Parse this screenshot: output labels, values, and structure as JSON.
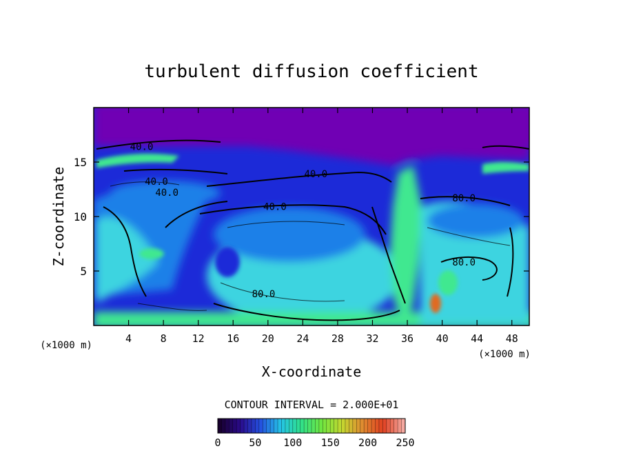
{
  "chart_data": {
    "type": "heatmap",
    "title": "turbulent diffusion coefficient",
    "xlabel": "X-coordinate",
    "ylabel": "Z-coordinate",
    "x_unit": "(×1000 m)",
    "y_unit": "(×1000 m)",
    "xlim": [
      0,
      50
    ],
    "ylim": [
      0,
      20
    ],
    "x_ticks": [
      4,
      8,
      12,
      16,
      20,
      24,
      28,
      32,
      36,
      40,
      44,
      48
    ],
    "y_ticks": [
      5,
      10,
      15
    ],
    "contour_interval_text": "CONTOUR INTERVAL = 2.000E+01",
    "contour_labels": [
      {
        "text": "40.0",
        "x": 5.5,
        "y": 16.1
      },
      {
        "text": "40.0",
        "x": 7.2,
        "y": 12.9
      },
      {
        "text": "40.0",
        "x": 8.4,
        "y": 11.9
      },
      {
        "text": "40.0",
        "x": 25.5,
        "y": 13.6
      },
      {
        "text": "40.0",
        "x": 20.8,
        "y": 10.6
      },
      {
        "text": "80.0",
        "x": 19.5,
        "y": 2.6
      },
      {
        "text": "80.0",
        "x": 42.5,
        "y": 5.5
      },
      {
        "text": "80.0",
        "x": 42.5,
        "y": 11.4
      }
    ],
    "colorbar": {
      "min": 0,
      "max": 250,
      "ticks": [
        0,
        50,
        100,
        150,
        200,
        250
      ],
      "colors": [
        "#18002e",
        "#2a0a8a",
        "#2450e0",
        "#25c4e6",
        "#30e08a",
        "#70e640",
        "#c4d830",
        "#e08a30",
        "#e04020",
        "#f4a8a0"
      ]
    },
    "field_colors": {
      "stratosphere": "#7000b4",
      "low": "#1c2ad8",
      "mid": "#1e80e8",
      "high": "#3ed4e0",
      "very_high": "#40e890",
      "peak": "#e06a20"
    }
  }
}
